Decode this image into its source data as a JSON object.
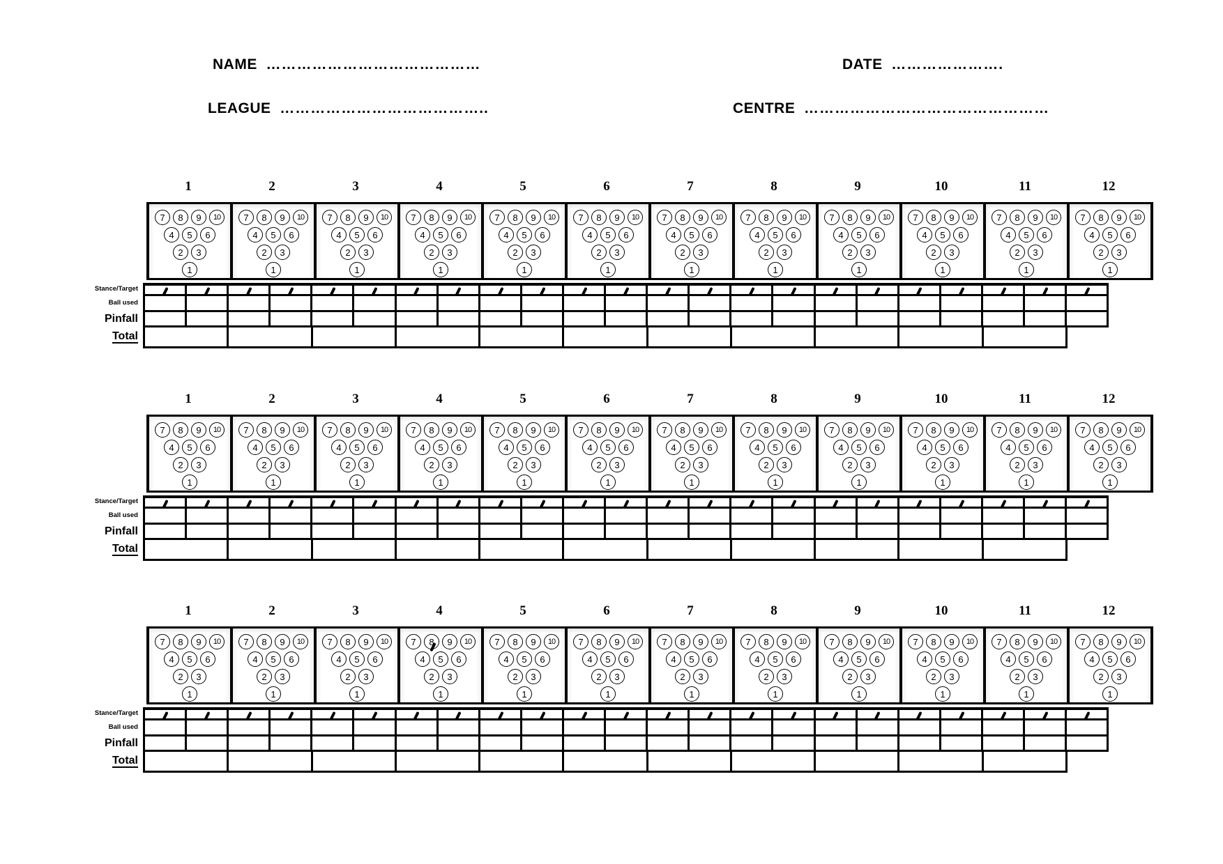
{
  "header": {
    "name_label": "NAME",
    "name_dots": "……………………………………",
    "date_label": "DATE",
    "date_dots": "………………….",
    "league_label": "LEAGUE",
    "league_dots": "…………………………………..",
    "centre_label": "CENTRE",
    "centre_dots": "…………………………………………"
  },
  "sheet": {
    "section_count": 3,
    "frames_per_section": 12,
    "frame_numbers": [
      "1",
      "2",
      "3",
      "4",
      "5",
      "6",
      "7",
      "8",
      "9",
      "10",
      "11",
      "12"
    ],
    "pin_rows": [
      [
        "7",
        "8",
        "9",
        "10"
      ],
      [
        "4",
        "5",
        "6"
      ],
      [
        "2",
        "3"
      ],
      [
        "1"
      ]
    ],
    "row_labels": {
      "stance": "Stance/Target",
      "ball": "Ball used",
      "pinfall": "Pinfall",
      "total": "Total"
    },
    "stance_tick_glyph": "/",
    "stance_cells_per_section": 23,
    "total_cells_per_section": 11,
    "stray_tick": {
      "section": 3,
      "frame": 4,
      "position": "below pin 8"
    }
  },
  "colors": {
    "ink": "#000000",
    "paper": "#ffffff"
  }
}
